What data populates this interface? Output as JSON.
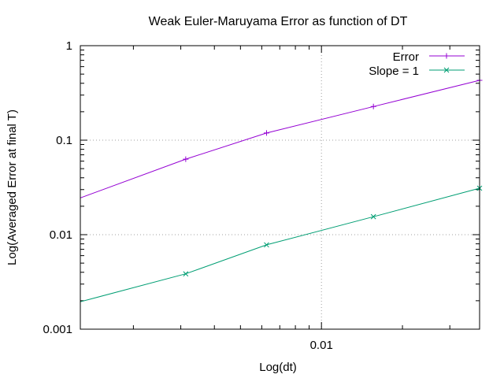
{
  "chart_data": {
    "type": "line",
    "title": "Weak Euler-Maruyama Error as function of DT",
    "xlabel": "Log(dt)",
    "ylabel": "Log(Averaged Error at final T)",
    "x_scale": "log",
    "y_scale": "log",
    "xlim": [
      0.00127,
      0.0387
    ],
    "ylim": [
      0.001,
      1
    ],
    "x_ticks": [
      {
        "value": 0.01,
        "label": "0.01"
      }
    ],
    "y_ticks": [
      {
        "value": 0.001,
        "label": "0.001"
      },
      {
        "value": 0.01,
        "label": "0.01"
      },
      {
        "value": 0.1,
        "label": "0.1"
      },
      {
        "value": 1,
        "label": "1"
      }
    ],
    "grid": true,
    "legend_position": "top-right",
    "series": [
      {
        "name": "Error",
        "color": "#9400d3",
        "marker": "plus",
        "x": [
          0.00127,
          0.00313,
          0.00625,
          0.0156,
          0.0387
        ],
        "y": [
          0.0245,
          0.063,
          0.119,
          0.227,
          0.43
        ]
      },
      {
        "name": "Slope = 1",
        "color": "#009e73",
        "marker": "cross",
        "x": [
          0.00127,
          0.00313,
          0.00625,
          0.0156,
          0.0387
        ],
        "y": [
          0.00195,
          0.00385,
          0.0078,
          0.0155,
          0.031
        ]
      }
    ]
  }
}
